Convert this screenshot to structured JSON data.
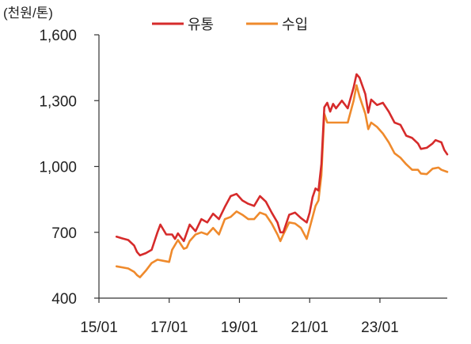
{
  "chart_data": {
    "type": "line",
    "unit_label": "(천원/톤)",
    "ylim": [
      400,
      1600
    ],
    "yticks": [
      400,
      700,
      1000,
      1300,
      1600
    ],
    "ytick_labels": [
      "400",
      "700",
      "1,000",
      "1,300",
      "1,600"
    ],
    "xlim": [
      "2015-01",
      "2024-12"
    ],
    "xticks": [
      "2015-01",
      "2017-01",
      "2019-01",
      "2021-01",
      "2023-01"
    ],
    "xtick_labels": [
      "15/01",
      "17/01",
      "19/01",
      "21/01",
      "23/01"
    ],
    "legend_position": "top",
    "grid": false,
    "series": [
      {
        "name": "유통",
        "color": "#d62b2b",
        "points": [
          [
            "2015-07",
            680
          ],
          [
            "2015-09",
            672
          ],
          [
            "2015-11",
            665
          ],
          [
            "2016-01",
            640
          ],
          [
            "2016-02",
            610
          ],
          [
            "2016-03",
            595
          ],
          [
            "2016-05",
            605
          ],
          [
            "2016-07",
            620
          ],
          [
            "2016-09",
            700
          ],
          [
            "2016-10",
            735
          ],
          [
            "2016-12",
            690
          ],
          [
            "2017-02",
            690
          ],
          [
            "2017-03",
            670
          ],
          [
            "2017-04",
            695
          ],
          [
            "2017-06",
            660
          ],
          [
            "2017-08",
            735
          ],
          [
            "2017-10",
            705
          ],
          [
            "2017-12",
            760
          ],
          [
            "2018-02",
            745
          ],
          [
            "2018-04",
            785
          ],
          [
            "2018-06",
            760
          ],
          [
            "2018-08",
            815
          ],
          [
            "2018-10",
            865
          ],
          [
            "2018-12",
            875
          ],
          [
            "2019-02",
            845
          ],
          [
            "2019-04",
            830
          ],
          [
            "2019-06",
            820
          ],
          [
            "2019-08",
            865
          ],
          [
            "2019-10",
            840
          ],
          [
            "2019-12",
            790
          ],
          [
            "2020-02",
            745
          ],
          [
            "2020-03",
            700
          ],
          [
            "2020-04",
            700
          ],
          [
            "2020-06",
            780
          ],
          [
            "2020-08",
            790
          ],
          [
            "2020-10",
            765
          ],
          [
            "2020-12",
            745
          ],
          [
            "2021-01",
            790
          ],
          [
            "2021-02",
            860
          ],
          [
            "2021-03",
            900
          ],
          [
            "2021-04",
            890
          ],
          [
            "2021-05",
            1010
          ],
          [
            "2021-06",
            1270
          ],
          [
            "2021-07",
            1290
          ],
          [
            "2021-08",
            1250
          ],
          [
            "2021-09",
            1285
          ],
          [
            "2021-10",
            1265
          ],
          [
            "2021-12",
            1300
          ],
          [
            "2022-02",
            1265
          ],
          [
            "2022-04",
            1360
          ],
          [
            "2022-05",
            1420
          ],
          [
            "2022-06",
            1405
          ],
          [
            "2022-08",
            1330
          ],
          [
            "2022-09",
            1245
          ],
          [
            "2022-10",
            1305
          ],
          [
            "2022-12",
            1280
          ],
          [
            "2023-02",
            1290
          ],
          [
            "2023-04",
            1250
          ],
          [
            "2023-06",
            1200
          ],
          [
            "2023-08",
            1190
          ],
          [
            "2023-10",
            1140
          ],
          [
            "2023-12",
            1130
          ],
          [
            "2024-02",
            1105
          ],
          [
            "2024-03",
            1080
          ],
          [
            "2024-05",
            1085
          ],
          [
            "2024-07",
            1105
          ],
          [
            "2024-08",
            1120
          ],
          [
            "2024-10",
            1110
          ],
          [
            "2024-11",
            1075
          ],
          [
            "2024-12",
            1055
          ]
        ]
      },
      {
        "name": "수입",
        "color": "#ef8a2c",
        "points": [
          [
            "2015-07",
            545
          ],
          [
            "2015-09",
            540
          ],
          [
            "2015-11",
            535
          ],
          [
            "2016-01",
            520
          ],
          [
            "2016-02",
            505
          ],
          [
            "2016-03",
            495
          ],
          [
            "2016-05",
            525
          ],
          [
            "2016-07",
            560
          ],
          [
            "2016-09",
            575
          ],
          [
            "2016-11",
            570
          ],
          [
            "2017-01",
            565
          ],
          [
            "2017-02",
            620
          ],
          [
            "2017-04",
            665
          ],
          [
            "2017-06",
            625
          ],
          [
            "2017-07",
            630
          ],
          [
            "2017-08",
            660
          ],
          [
            "2017-10",
            690
          ],
          [
            "2017-12",
            700
          ],
          [
            "2018-02",
            690
          ],
          [
            "2018-04",
            720
          ],
          [
            "2018-06",
            690
          ],
          [
            "2018-08",
            760
          ],
          [
            "2018-10",
            770
          ],
          [
            "2018-12",
            795
          ],
          [
            "2019-02",
            780
          ],
          [
            "2019-04",
            760
          ],
          [
            "2019-06",
            760
          ],
          [
            "2019-08",
            790
          ],
          [
            "2019-10",
            780
          ],
          [
            "2019-12",
            740
          ],
          [
            "2020-02",
            690
          ],
          [
            "2020-03",
            660
          ],
          [
            "2020-04",
            690
          ],
          [
            "2020-06",
            745
          ],
          [
            "2020-08",
            740
          ],
          [
            "2020-10",
            720
          ],
          [
            "2020-12",
            670
          ],
          [
            "2021-01",
            720
          ],
          [
            "2021-03",
            820
          ],
          [
            "2021-04",
            845
          ],
          [
            "2021-05",
            960
          ],
          [
            "2021-06",
            1240
          ],
          [
            "2021-07",
            1200
          ],
          [
            "2021-08",
            1200
          ],
          [
            "2021-12",
            1200
          ],
          [
            "2022-02",
            1200
          ],
          [
            "2022-04",
            1300
          ],
          [
            "2022-05",
            1370
          ],
          [
            "2022-06",
            1320
          ],
          [
            "2022-08",
            1240
          ],
          [
            "2022-09",
            1170
          ],
          [
            "2022-10",
            1200
          ],
          [
            "2022-12",
            1180
          ],
          [
            "2023-02",
            1150
          ],
          [
            "2023-04",
            1110
          ],
          [
            "2023-06",
            1060
          ],
          [
            "2023-08",
            1040
          ],
          [
            "2023-10",
            1010
          ],
          [
            "2023-12",
            985
          ],
          [
            "2024-02",
            985
          ],
          [
            "2024-03",
            968
          ],
          [
            "2024-05",
            965
          ],
          [
            "2024-07",
            990
          ],
          [
            "2024-09",
            995
          ],
          [
            "2024-10",
            985
          ],
          [
            "2024-12",
            975
          ]
        ]
      }
    ]
  }
}
